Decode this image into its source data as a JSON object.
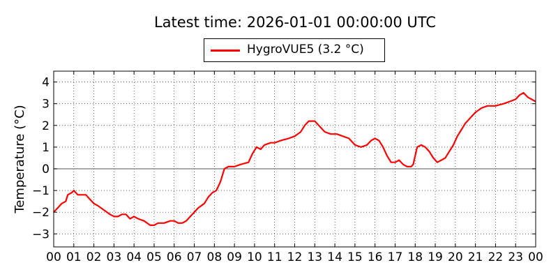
{
  "title": "Latest time: 2026-01-01 00:00:00 UTC",
  "legend": {
    "label": "HygroVUE5 (3.2 °C)",
    "color": "#ff0000",
    "placement": "top-center"
  },
  "chart_data": {
    "type": "line",
    "title": "Latest time: 2026-01-01 00:00:00 UTC",
    "xlabel": "",
    "ylabel": "Temperature (°C)",
    "xlim": [
      0,
      24
    ],
    "ylim": [
      -3.6,
      4.5
    ],
    "grid": true,
    "zero_line": true,
    "x_ticks": [
      "00",
      "01",
      "02",
      "03",
      "04",
      "05",
      "06",
      "07",
      "08",
      "09",
      "10",
      "11",
      "12",
      "13",
      "14",
      "15",
      "16",
      "17",
      "18",
      "19",
      "20",
      "21",
      "22",
      "23",
      "00"
    ],
    "y_ticks": [
      -3,
      -2,
      -1,
      0,
      1,
      2,
      3,
      4
    ],
    "series": [
      {
        "name": "HygroVUE5 (3.2 °C)",
        "color": "#ff0000",
        "points": [
          [
            0.0,
            -2.0
          ],
          [
            0.2,
            -1.8
          ],
          [
            0.4,
            -1.6
          ],
          [
            0.6,
            -1.5
          ],
          [
            0.7,
            -1.2
          ],
          [
            0.9,
            -1.1
          ],
          [
            1.0,
            -1.0
          ],
          [
            1.1,
            -1.1
          ],
          [
            1.2,
            -1.2
          ],
          [
            1.4,
            -1.2
          ],
          [
            1.6,
            -1.2
          ],
          [
            1.8,
            -1.4
          ],
          [
            2.0,
            -1.6
          ],
          [
            2.2,
            -1.7
          ],
          [
            2.5,
            -1.9
          ],
          [
            2.8,
            -2.1
          ],
          [
            3.0,
            -2.2
          ],
          [
            3.2,
            -2.2
          ],
          [
            3.4,
            -2.1
          ],
          [
            3.6,
            -2.1
          ],
          [
            3.8,
            -2.3
          ],
          [
            4.0,
            -2.2
          ],
          [
            4.2,
            -2.3
          ],
          [
            4.5,
            -2.4
          ],
          [
            4.8,
            -2.6
          ],
          [
            5.0,
            -2.6
          ],
          [
            5.2,
            -2.5
          ],
          [
            5.5,
            -2.5
          ],
          [
            5.8,
            -2.4
          ],
          [
            6.0,
            -2.4
          ],
          [
            6.2,
            -2.5
          ],
          [
            6.4,
            -2.5
          ],
          [
            6.6,
            -2.4
          ],
          [
            6.8,
            -2.2
          ],
          [
            7.0,
            -2.0
          ],
          [
            7.2,
            -1.8
          ],
          [
            7.5,
            -1.6
          ],
          [
            7.7,
            -1.3
          ],
          [
            7.9,
            -1.1
          ],
          [
            8.1,
            -1.0
          ],
          [
            8.3,
            -0.6
          ],
          [
            8.5,
            0.0
          ],
          [
            8.7,
            0.1
          ],
          [
            9.0,
            0.1
          ],
          [
            9.3,
            0.2
          ],
          [
            9.7,
            0.3
          ],
          [
            9.9,
            0.7
          ],
          [
            10.1,
            1.0
          ],
          [
            10.3,
            0.9
          ],
          [
            10.5,
            1.1
          ],
          [
            10.8,
            1.2
          ],
          [
            11.0,
            1.2
          ],
          [
            11.3,
            1.3
          ],
          [
            11.7,
            1.4
          ],
          [
            12.0,
            1.5
          ],
          [
            12.3,
            1.7
          ],
          [
            12.5,
            2.0
          ],
          [
            12.7,
            2.2
          ],
          [
            13.0,
            2.2
          ],
          [
            13.2,
            2.0
          ],
          [
            13.5,
            1.7
          ],
          [
            13.8,
            1.6
          ],
          [
            14.1,
            1.6
          ],
          [
            14.4,
            1.5
          ],
          [
            14.7,
            1.4
          ],
          [
            15.0,
            1.1
          ],
          [
            15.3,
            1.0
          ],
          [
            15.6,
            1.1
          ],
          [
            15.8,
            1.3
          ],
          [
            16.0,
            1.4
          ],
          [
            16.2,
            1.3
          ],
          [
            16.4,
            1.0
          ],
          [
            16.6,
            0.6
          ],
          [
            16.8,
            0.3
          ],
          [
            17.0,
            0.3
          ],
          [
            17.2,
            0.4
          ],
          [
            17.4,
            0.2
          ],
          [
            17.6,
            0.1
          ],
          [
            17.8,
            0.1
          ],
          [
            17.9,
            0.2
          ],
          [
            18.1,
            1.0
          ],
          [
            18.3,
            1.1
          ],
          [
            18.5,
            1.0
          ],
          [
            18.7,
            0.8
          ],
          [
            18.9,
            0.5
          ],
          [
            19.1,
            0.3
          ],
          [
            19.3,
            0.4
          ],
          [
            19.5,
            0.5
          ],
          [
            19.7,
            0.8
          ],
          [
            19.9,
            1.1
          ],
          [
            20.1,
            1.5
          ],
          [
            20.3,
            1.8
          ],
          [
            20.5,
            2.1
          ],
          [
            20.8,
            2.4
          ],
          [
            21.0,
            2.6
          ],
          [
            21.3,
            2.8
          ],
          [
            21.6,
            2.9
          ],
          [
            22.0,
            2.9
          ],
          [
            22.4,
            3.0
          ],
          [
            22.7,
            3.1
          ],
          [
            23.0,
            3.2
          ],
          [
            23.2,
            3.4
          ],
          [
            23.4,
            3.5
          ],
          [
            23.6,
            3.3
          ],
          [
            23.8,
            3.2
          ],
          [
            24.0,
            3.1
          ]
        ]
      }
    ]
  }
}
